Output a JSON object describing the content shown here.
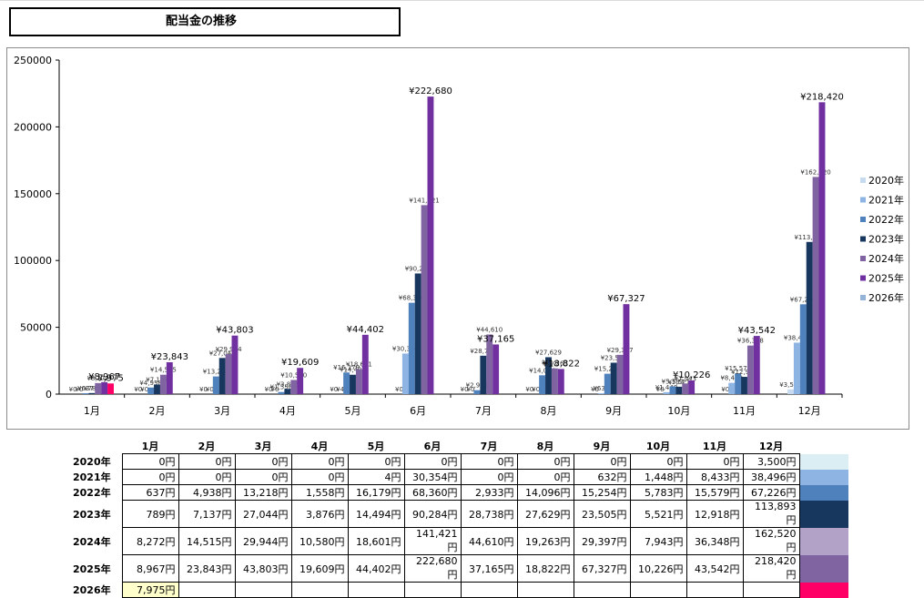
{
  "title": "配当金の推移",
  "chart_data": {
    "type": "bar",
    "categories": [
      "1月",
      "2月",
      "3月",
      "4月",
      "5月",
      "6月",
      "7月",
      "8月",
      "9月",
      "10月",
      "11月",
      "12月"
    ],
    "y_ticks": [
      "0",
      "50000",
      "100000",
      "150000",
      "200000",
      "250000"
    ],
    "ylim": [
      0,
      250000
    ],
    "legend_position": "right",
    "series": [
      {
        "name": "2020年",
        "color": "#c6dbef",
        "label_size": "small",
        "values": [
          0,
          0,
          0,
          0,
          0,
          0,
          0,
          0,
          0,
          0,
          0,
          3500
        ],
        "labels": [
          "¥0",
          "¥0",
          "¥0",
          "¥0",
          "¥0",
          "¥0",
          "¥0",
          "¥0",
          "¥0",
          "¥0",
          "¥0",
          "¥3,500"
        ]
      },
      {
        "name": "2021年",
        "color": "#8db4e2",
        "label_size": "small",
        "values": [
          0,
          0,
          0,
          0,
          4,
          30354,
          0,
          0,
          632,
          1448,
          8433,
          38496
        ],
        "labels": [
          "¥0",
          "¥0",
          "¥0",
          "¥0",
          "¥4",
          "¥30,354",
          "¥0",
          "¥0",
          "¥632",
          "¥1,448",
          "¥8,433",
          "¥38,496"
        ]
      },
      {
        "name": "2022年",
        "color": "#4f81bd",
        "label_size": "small",
        "values": [
          637,
          4938,
          13218,
          1558,
          16179,
          68360,
          2933,
          14096,
          15254,
          5783,
          15579,
          67226
        ],
        "labels": [
          "¥637",
          "¥4,938",
          "¥13,218",
          "¥1,558",
          "¥16,179",
          "¥68,360",
          "¥2,933",
          "¥14,096",
          "¥15,254",
          "¥5,783",
          "¥15,579",
          "¥67,226"
        ]
      },
      {
        "name": "2023年",
        "color": "#17375e",
        "label_size": "small",
        "values": [
          789,
          7137,
          27044,
          3876,
          14494,
          90284,
          28738,
          27629,
          23505,
          5521,
          12918,
          113893
        ],
        "labels": [
          "¥789",
          "¥7,137",
          "¥27,044",
          "¥3,876",
          "¥14,494",
          "¥90,284",
          "¥28,738",
          "¥27,629",
          "¥23,505",
          "¥5,521",
          "¥12,918",
          "¥113,893"
        ]
      },
      {
        "name": "2024年",
        "color": "#8064a2",
        "label_size": "small",
        "values": [
          8272,
          14515,
          29944,
          10580,
          18601,
          141421,
          44610,
          19263,
          29397,
          7943,
          36348,
          162520
        ],
        "labels": [
          "¥8,272",
          "¥14,515",
          "¥29,944",
          "¥10,580",
          "¥18,601",
          "¥141,421",
          "¥44,610",
          "¥19,263",
          "¥29,397",
          "¥7,943",
          "¥36,348",
          "¥162,520"
        ]
      },
      {
        "name": "2025年",
        "color": "#7030a0",
        "label_size": "large",
        "values": [
          8967,
          23843,
          43803,
          19609,
          44402,
          222680,
          37165,
          18822,
          67327,
          10226,
          43542,
          218420
        ],
        "labels": [
          "¥8,967",
          "¥23,843",
          "¥43,803",
          "¥19,609",
          "¥44,402",
          "¥222,680",
          "¥37,165",
          "¥18,822",
          "¥67,327",
          "¥10,226",
          "¥43,542",
          "¥218,420"
        ]
      },
      {
        "name": "2026年",
        "color": "#ff0066",
        "legend_color": "#95b3d7",
        "label_size": "large",
        "values": [
          7975,
          null,
          null,
          null,
          null,
          null,
          null,
          null,
          null,
          null,
          null,
          null
        ],
        "labels": [
          "7,975",
          "",
          "",
          "",
          "",
          "",
          "",
          "",
          "",
          "",
          "",
          ""
        ]
      }
    ]
  },
  "table": {
    "columns": [
      "1月",
      "2月",
      "3月",
      "4月",
      "5月",
      "6月",
      "7月",
      "8月",
      "9月",
      "10月",
      "11月",
      "12月"
    ],
    "rows": [
      {
        "year": "2020年",
        "swatch": "#dbeef4",
        "cells": [
          "0円",
          "0円",
          "0円",
          "0円",
          "0円",
          "0円",
          "0円",
          "0円",
          "0円",
          "0円",
          "0円",
          "3,500円"
        ]
      },
      {
        "year": "2021年",
        "swatch": "#8db4e2",
        "cells": [
          "0円",
          "0円",
          "0円",
          "0円",
          "4円",
          "30,354円",
          "0円",
          "0円",
          "632円",
          "1,448円",
          "8,433円",
          "38,496円"
        ]
      },
      {
        "year": "2022年",
        "swatch": "#4f81bd",
        "cells": [
          "637円",
          "4,938円",
          "13,218円",
          "1,558円",
          "16,179円",
          "68,360円",
          "2,933円",
          "14,096円",
          "15,254円",
          "5,783円",
          "15,579円",
          "67,226円"
        ]
      },
      {
        "year": "2023年",
        "swatch": "#17375e",
        "cells": [
          "789円",
          "7,137円",
          "27,044円",
          "3,876円",
          "14,494円",
          "90,284円",
          "28,738円",
          "27,629円",
          "23,505円",
          "5,521円",
          "12,918円",
          "113,893円"
        ]
      },
      {
        "year": "2024年",
        "swatch": "#b2a2c7",
        "cells": [
          "8,272円",
          "14,515円",
          "29,944円",
          "10,580円",
          "18,601円",
          "141,421円",
          "44,610円",
          "19,263円",
          "29,397円",
          "7,943円",
          "36,348円",
          "162,520円"
        ]
      },
      {
        "year": "2025年",
        "swatch": "#8064a2",
        "cells": [
          "8,967円",
          "23,843円",
          "43,803円",
          "19,609円",
          "44,402円",
          "222,680円",
          "37,165円",
          "18,822円",
          "67,327円",
          "10,226円",
          "43,542円",
          "218,420円"
        ]
      },
      {
        "year": "2026年",
        "swatch": "#ff0066",
        "cells": [
          "7,975円",
          "",
          "",
          "",
          "",
          "",
          "",
          "",
          "",
          "",
          "",
          ""
        ]
      }
    ],
    "highlight_fill": "#ffffcc"
  }
}
